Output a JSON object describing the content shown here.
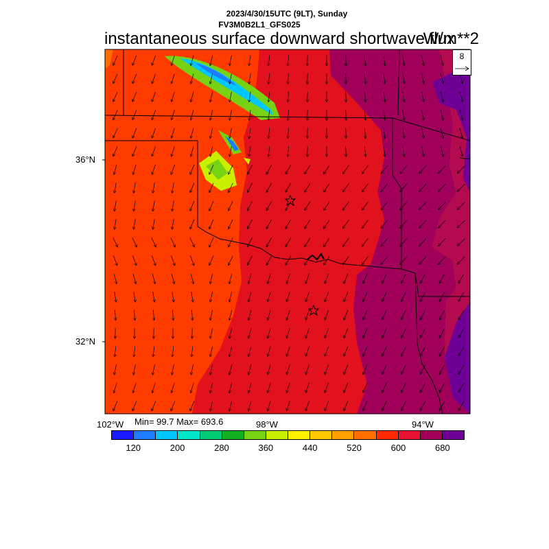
{
  "header": {
    "datetime": "2023/4/30/15UTC (9LT), Sunday",
    "model": "FV3M0B2L1_GFS025",
    "title": "instantaneous surface downward shortwave flux",
    "units": "W/m**2"
  },
  "map": {
    "lat_labels": [
      "36°N",
      "32°N"
    ],
    "lon_labels": [
      "102°W",
      "98°W",
      "94°W"
    ],
    "reference_vector": "8",
    "stats_text": "Min= 99.7 Max= 693.6",
    "min": 99.7,
    "max": 693.6
  },
  "colorbar": {
    "colors": [
      "#1a1aff",
      "#1e7dff",
      "#00c8ff",
      "#00e6c8",
      "#00cc78",
      "#10b01e",
      "#78d214",
      "#c8f000",
      "#fff000",
      "#ffc800",
      "#ffa000",
      "#ff6e00",
      "#ff2a00",
      "#e61232",
      "#a0005a",
      "#6e0096"
    ],
    "tick_labels": [
      "120",
      "200",
      "280",
      "360",
      "440",
      "520",
      "600",
      "680"
    ]
  }
}
